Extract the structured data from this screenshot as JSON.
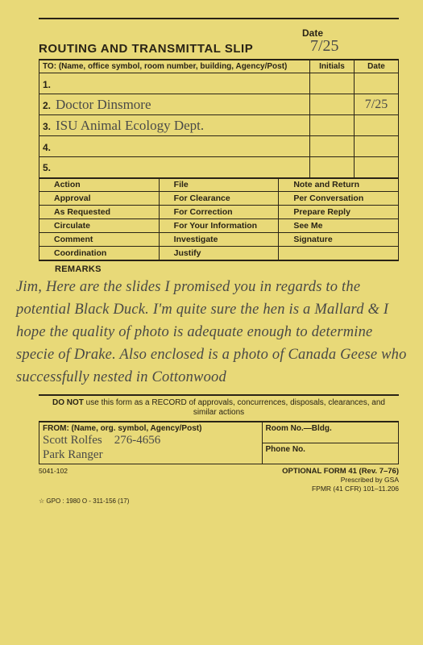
{
  "colors": {
    "paper": "#e8d978",
    "ink": "#2a2416",
    "handwriting": "#4a4a48"
  },
  "header": {
    "title": "ROUTING AND TRANSMITTAL SLIP",
    "date_label": "Date",
    "date_value": "7/25"
  },
  "to": {
    "label": "TO: (Name, office symbol, room number, building, Agency/Post)",
    "col_initials": "Initials",
    "col_date": "Date",
    "rows": [
      {
        "num": "1.",
        "text": "",
        "initials": "",
        "date": ""
      },
      {
        "num": "2.",
        "text": "Doctor Dinsmore",
        "initials": "",
        "date": "7/25"
      },
      {
        "num": "3.",
        "text": "ISU  Animal Ecology Dept.",
        "initials": "",
        "date": ""
      },
      {
        "num": "4.",
        "text": "",
        "initials": "",
        "date": ""
      },
      {
        "num": "5.",
        "text": "",
        "initials": "",
        "date": ""
      }
    ]
  },
  "actions": {
    "grid": [
      [
        "Action",
        "File",
        "Note and Return"
      ],
      [
        "Approval",
        "For Clearance",
        "Per Conversation"
      ],
      [
        "As Requested",
        "For Correction",
        "Prepare Reply"
      ],
      [
        "Circulate",
        "For Your Information",
        "See Me"
      ],
      [
        "Comment",
        "Investigate",
        "Signature"
      ],
      [
        "Coordination",
        "Justify",
        ""
      ]
    ]
  },
  "remarks": {
    "label": "REMARKS",
    "text": "Jim, Here are the slides I promised you in regards to the potential Black Duck. I'm quite sure the hen is a Mallard & I hope the quality of photo is adequate enough to determine specie of Drake. Also enclosed is a photo of Canada Geese who successfully nested in Cottonwood"
  },
  "donot": {
    "pre": "DO NOT",
    "rest": " use this form as a RECORD of approvals, concurrences, disposals, clearances, and similar actions"
  },
  "from": {
    "label": "FROM: (Name, org. symbol, Agency/Post)",
    "name": "Scott Rolfes",
    "title": "Park Ranger",
    "phone_hw": "276-4656",
    "room_label": "Room No.—Bldg.",
    "phone_label": "Phone No."
  },
  "footer": {
    "left": "5041-102",
    "opt": "OPTIONAL FORM 41 (Rev. 7–76)",
    "line2": "Prescribed by GSA",
    "line3": "FPMR (41 CFR) 101–11.206",
    "gpo": "☆ GPO : 1980 O - 311-156 (17)"
  }
}
